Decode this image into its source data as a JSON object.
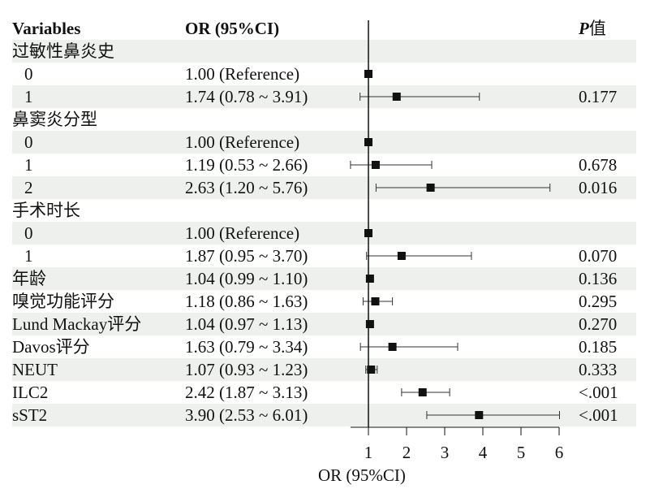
{
  "chart_data": {
    "type": "forest",
    "headers": {
      "variables": "Variables",
      "or": "OR (95%CI)",
      "p_bold": "P",
      "p_rest": "值"
    },
    "xlabel": "OR (95%CI)",
    "xlim": [
      0.53,
      6
    ],
    "xticks": [
      "1",
      "2",
      "3",
      "4",
      "5",
      "6"
    ],
    "reference_line": 1,
    "rows": [
      {
        "label": "过敏性鼻炎史",
        "group": true
      },
      {
        "label": "0",
        "indent": true,
        "or_text": "1.00 (Reference)",
        "or": 1.0
      },
      {
        "label": "1",
        "indent": true,
        "or_text": "1.74 (0.78 ~ 3.91)",
        "or": 1.74,
        "lo": 0.78,
        "hi": 3.91,
        "p": "0.177"
      },
      {
        "label": "鼻窦炎分型",
        "group": true
      },
      {
        "label": "0",
        "indent": true,
        "or_text": "1.00 (Reference)",
        "or": 1.0
      },
      {
        "label": "1",
        "indent": true,
        "or_text": "1.19 (0.53 ~ 2.66)",
        "or": 1.19,
        "lo": 0.53,
        "hi": 2.66,
        "p": "0.678"
      },
      {
        "label": "2",
        "indent": true,
        "or_text": "2.63 (1.20 ~ 5.76)",
        "or": 2.63,
        "lo": 1.2,
        "hi": 5.76,
        "p": "0.016"
      },
      {
        "label": "手术时长",
        "group": true
      },
      {
        "label": "0",
        "indent": true,
        "or_text": "1.00 (Reference)",
        "or": 1.0
      },
      {
        "label": "1",
        "indent": true,
        "or_text": "1.87 (0.95 ~ 3.70)",
        "or": 1.87,
        "lo": 0.95,
        "hi": 3.7,
        "p": "0.070"
      },
      {
        "label": "年龄",
        "or_text": "1.04 (0.99 ~ 1.10)",
        "or": 1.04,
        "lo": 0.99,
        "hi": 1.1,
        "p": "0.136"
      },
      {
        "label": "嗅觉功能评分",
        "or_text": "1.18 (0.86 ~ 1.63)",
        "or": 1.18,
        "lo": 0.86,
        "hi": 1.63,
        "p": "0.295"
      },
      {
        "label": "Lund Mackay评分",
        "or_text": "1.04 (0.97 ~ 1.13)",
        "or": 1.04,
        "lo": 0.97,
        "hi": 1.13,
        "p": "0.270"
      },
      {
        "label": "Davos评分",
        "or_text": "1.63 (0.79 ~ 3.34)",
        "or": 1.63,
        "lo": 0.79,
        "hi": 3.34,
        "p": "0.185"
      },
      {
        "label": "NEUT",
        "or_text": "1.07 (0.93 ~ 1.23)",
        "or": 1.07,
        "lo": 0.93,
        "hi": 1.23,
        "p": "0.333"
      },
      {
        "label": "ILC2",
        "or_text": "2.42 (1.87 ~ 3.13)",
        "or": 2.42,
        "lo": 1.87,
        "hi": 3.13,
        "p": "<.001"
      },
      {
        "label": "sST2",
        "or_text": "3.90 (2.53 ~ 6.01)",
        "or": 3.9,
        "lo": 2.53,
        "hi": 6.01,
        "p": "<.001"
      }
    ],
    "colors": {
      "stripe": "#eef0ee",
      "mark": "#111111"
    }
  }
}
